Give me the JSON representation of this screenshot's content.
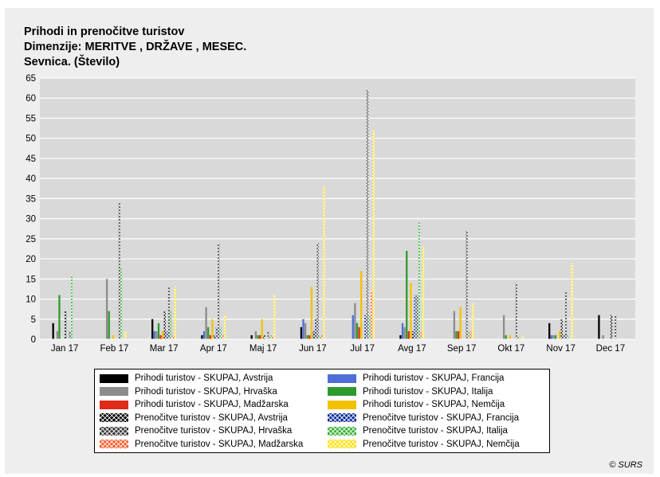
{
  "titles": {
    "line1": "Prihodi in prenočitve turistov",
    "line2": "Dimenzije: MERITVE , DRŽAVE , MESEC.",
    "line3": "Sevnica. (Število)"
  },
  "credit": "© SURS",
  "chart_data": {
    "type": "bar",
    "title": "Prihodi in prenočitve turistov",
    "ylim": [
      0,
      65
    ],
    "yticks": [
      0,
      5,
      10,
      15,
      20,
      25,
      30,
      35,
      40,
      45,
      50,
      55,
      60,
      65
    ],
    "grid": true,
    "legend_position": "bottom",
    "categories": [
      "Jan 17",
      "Feb 17",
      "Mar 17",
      "Apr 17",
      "Maj 17",
      "Jun 17",
      "Jul 17",
      "Avg 17",
      "Sep 17",
      "Okt 17",
      "Nov 17",
      "Dec 17"
    ],
    "series": [
      {
        "name": "Prihodi turistov - SKUPAJ, Avstrija",
        "color": "#000000",
        "pattern": "solid",
        "values": [
          4,
          0,
          5,
          1,
          1,
          3,
          0,
          1,
          0,
          0,
          4,
          6
        ]
      },
      {
        "name": "Prihodi turistov - SKUPAJ, Francija",
        "color": "#4f6fd8",
        "pattern": "solid",
        "values": [
          0,
          0,
          2,
          2,
          0,
          5,
          6,
          4,
          0,
          0,
          1,
          0
        ]
      },
      {
        "name": "Prihodi turistov - SKUPAJ, Hrvaška",
        "color": "#8c8c8c",
        "pattern": "solid",
        "values": [
          2,
          15,
          2,
          8,
          2,
          4,
          9,
          3,
          7,
          6,
          1,
          1
        ]
      },
      {
        "name": "Prihodi turistov - SKUPAJ, Italija",
        "color": "#2e9a2e",
        "pattern": "solid",
        "values": [
          11,
          7,
          4,
          3,
          1,
          1,
          4,
          22,
          2,
          1,
          1,
          0
        ]
      },
      {
        "name": "Prihodi turistov - SKUPAJ, Madžarska",
        "color": "#e02a1a",
        "pattern": "solid",
        "values": [
          0,
          0,
          1,
          1,
          1,
          1,
          3,
          2,
          2,
          0,
          0,
          0
        ]
      },
      {
        "name": "Prihodi turistov - SKUPAJ, Nemčija",
        "color": "#f2c200",
        "pattern": "solid",
        "values": [
          0,
          1,
          2,
          5,
          5,
          13,
          17,
          14,
          8,
          1,
          2,
          0
        ]
      },
      {
        "name": "Prenočitve turistov - SKUPAJ, Avstrija",
        "color": "#000000",
        "pattern": "cross",
        "values": [
          7,
          0,
          7,
          1,
          1,
          2,
          0,
          2,
          0,
          0,
          5,
          6
        ]
      },
      {
        "name": "Prenočitve turistov - SKUPAJ, Francija",
        "color": "#0b2b99",
        "pattern": "cross",
        "values": [
          0,
          0,
          2,
          3,
          0,
          5,
          6,
          11,
          0,
          0,
          1,
          0
        ]
      },
      {
        "name": "Prenočitve turistov - SKUPAJ, Hrvaška",
        "color": "#3a3a3a",
        "pattern": "cross",
        "values": [
          2,
          34,
          13,
          24,
          2,
          24,
          62,
          11,
          27,
          14,
          12,
          6
        ]
      },
      {
        "name": "Prenočitve turistov - SKUPAJ, Italija",
        "color": "#36b036",
        "pattern": "cross",
        "values": [
          16,
          18,
          7,
          3,
          1,
          1,
          6,
          29,
          2,
          1,
          1,
          0
        ]
      },
      {
        "name": "Prenočitve turistov - SKUPAJ, Madžarska",
        "color": "#ff5a2a",
        "pattern": "cross",
        "values": [
          0,
          0,
          1,
          1,
          1,
          1,
          12,
          2,
          2,
          0,
          0,
          0
        ]
      },
      {
        "name": "Prenočitve turistov - SKUPAJ, Nemčija",
        "color": "#ffe000",
        "pattern": "cross",
        "values": [
          0,
          2,
          13,
          6,
          11,
          38,
          52,
          23,
          9,
          1,
          19,
          0
        ]
      }
    ]
  }
}
